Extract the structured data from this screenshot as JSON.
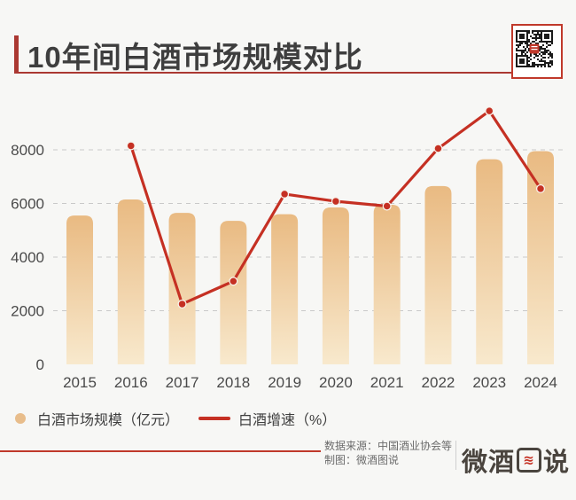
{
  "header": {
    "title": "10年间白酒市场规模对比"
  },
  "chart_data": {
    "type": "bar",
    "title": "10年间白酒市场规模对比",
    "categories": [
      "2015",
      "2016",
      "2017",
      "2018",
      "2019",
      "2020",
      "2021",
      "2022",
      "2023",
      "2024"
    ],
    "series": [
      {
        "name": "白酒市场规模（亿元）",
        "type": "bar",
        "values": [
          5550,
          6150,
          5650,
          5350,
          5600,
          5850,
          5950,
          6650,
          7650,
          7950
        ]
      },
      {
        "name": "白酒增速（%）",
        "type": "line",
        "values": [
          null,
          8150,
          2250,
          3100,
          6350,
          6080,
          5900,
          8050,
          9450,
          6550
        ],
        "note": "secondary % axis is hidden; values recorded as positions read on the left axis"
      }
    ],
    "xlabel": "",
    "ylabel": "",
    "ylim": [
      0,
      10000
    ],
    "yticks": [
      0,
      2000,
      4000,
      6000,
      8000
    ],
    "grid": "horizontal dashed",
    "legend_position": "bottom-left"
  },
  "footer": {
    "source": "数据来源：中国酒业协会等",
    "credit": "制图：微酒图说",
    "logo_full": "微酒图说",
    "logo_parts": {
      "left": "微酒",
      "boxed": "图",
      "wave": "≋",
      "right": "说"
    }
  },
  "colors": {
    "background": "#f7f7f5",
    "accent_red": "#ab3832",
    "title_text": "#3e3e3e",
    "axis_text": "#4a4a4a",
    "grid_line": "#c9c9c9",
    "bar_gradient_top": "#e9ba82",
    "bar_gradient_bottom": "#f8e9cd",
    "line_red": "#c53023",
    "legend_dot": "#e8bd8b",
    "footer_text": "#6b6b6b",
    "footer_rule": "#c0392b",
    "logo_dark": "#4a443e",
    "qr_border": "#c0392b",
    "qr_dark": "#1a1a1a"
  }
}
